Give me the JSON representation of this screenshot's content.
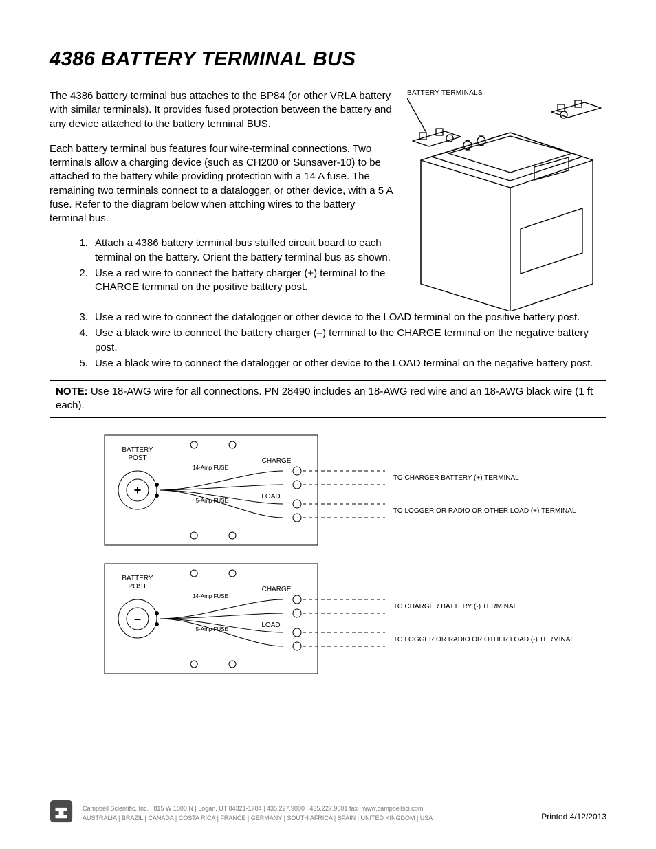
{
  "title": "4386 BATTERY TERMINAL BUS",
  "paragraphs": {
    "p1": "The 4386 battery terminal bus attaches to the BP84 (or other VRLA battery with similar terminals).  It provides fused protection between the battery and any device attached to the battery terminal BUS.",
    "p2": "Each battery terminal bus features four wire-terminal connections.  Two terminals allow a charging device (such as CH200 or Sunsaver-10) to be attached to the battery while providing protection with a 14 A fuse.  The remaining two terminals connect to a datalogger, or other device, with a 5 A fuse.  Refer to the diagram below when attching wires to the battery terminal bus."
  },
  "battery_caption": "BATTERY TERMINALS",
  "steps": [
    "Attach a 4386 battery terminal bus stuffed circuit board to each terminal on the battery.  Orient the battery terminal bus as shown.",
    "Use a red wire to connect the battery charger (+) terminal to the CHARGE terminal on the positive battery post.",
    "Use a red wire to connect the datalogger or other device to the LOAD terminal on the positive battery post.",
    "Use a black wire to connect the battery charger (–) terminal to the CHARGE terminal on the negative battery post.",
    "Use a black wire to connect the datalogger or other device to the LOAD terminal on the negative battery post."
  ],
  "note": {
    "label": "NOTE:",
    "text": " Use 18-AWG wire for all connections.  PN 28490 includes an 18-AWG red wire and an 18-AWG black wire (1 ft each)."
  },
  "diagram": {
    "pos": {
      "sign": "+",
      "battery_post": "BATTERY\nPOST",
      "charge": "CHARGE",
      "load": "LOAD",
      "fuse14": "14-Amp FUSE",
      "fuse5": "5-Amp FUSE",
      "charger_line": "TO CHARGER BATTERY (+) TERMINAL",
      "load_line": "TO LOGGER OR RADIO OR OTHER LOAD (+) TERMINAL"
    },
    "neg": {
      "sign": "–",
      "battery_post": "BATTERY\nPOST",
      "charge": "CHARGE",
      "load": "LOAD",
      "fuse14": "14-Amp FUSE",
      "fuse5": "5-Amp FUSE",
      "charger_line": "TO CHARGER BATTERY (-) TERMINAL",
      "load_line": "TO LOGGER OR RADIO OR OTHER LOAD (-) TERMINAL"
    },
    "style": {
      "stroke": "#000000",
      "board_w": 310,
      "board_h": 160,
      "hole_r": 5,
      "post_outer_r": 28,
      "post_inner_r": 16,
      "font_label": 10,
      "font_small": 8,
      "font_ext": 10,
      "dash": "5,4"
    }
  },
  "footer": {
    "company": "Campbell Scientific, Inc.",
    "address": "815 W 1800 N",
    "city": "Logan, UT 84321-1784",
    "phone": "435.227.9000",
    "fax": "435.227.9001 fax",
    "url": "www.campbellsci.com",
    "countries": [
      "AUSTRALIA",
      "BRAZIL",
      "CANADA",
      "COSTA RICA",
      "FRANCE",
      "GERMANY",
      "SOUTH AFRICA",
      "SPAIN",
      "UNITED KINGDOM",
      "USA"
    ]
  },
  "printed": "Printed 4/12/2013"
}
